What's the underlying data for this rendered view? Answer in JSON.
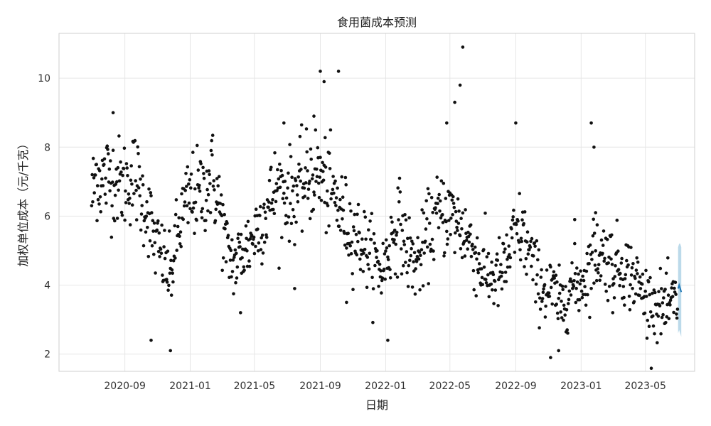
{
  "chart_data": {
    "type": "scatter",
    "title": "食用菌成本预测",
    "xlabel": "日期",
    "ylabel": "加权单位成本（元/千克）",
    "x_ticks": [
      "2020-09",
      "2021-01",
      "2021-05",
      "2021-09",
      "2022-01",
      "2022-05",
      "2022-09",
      "2023-01",
      "2023-05"
    ],
    "y_ticks": [
      2,
      4,
      6,
      8,
      10
    ],
    "xlim": [
      "2020-05-01",
      "2023-08-01"
    ],
    "ylim": [
      1.5,
      11.3
    ],
    "grid": true,
    "colors": {
      "points": "#111111",
      "forecast": "#1f77b4",
      "interval": "#a6cee3"
    },
    "observed_keypoints": [
      [
        "2020-07-01",
        6.5
      ],
      [
        "2020-07-10",
        7.3
      ],
      [
        "2020-07-20",
        7.0
      ],
      [
        "2020-08-01",
        7.2
      ],
      [
        "2020-08-15",
        7.1
      ],
      [
        "2020-08-25",
        6.9
      ],
      [
        "2020-09-05",
        7.0
      ],
      [
        "2020-09-20",
        7.2
      ],
      [
        "2020-10-01",
        6.6
      ],
      [
        "2020-10-15",
        6.1
      ],
      [
        "2020-10-25",
        5.3
      ],
      [
        "2020-11-10",
        4.8
      ],
      [
        "2020-11-25",
        4.2
      ],
      [
        "2020-12-05",
        5.2
      ],
      [
        "2020-12-20",
        6.2
      ],
      [
        "2021-01-05",
        6.6
      ],
      [
        "2021-01-25",
        6.7
      ],
      [
        "2021-02-10",
        7.2
      ],
      [
        "2021-02-25",
        6.3
      ],
      [
        "2021-03-10",
        5.0
      ],
      [
        "2021-03-25",
        4.6
      ],
      [
        "2021-04-10",
        5.0
      ],
      [
        "2021-04-25",
        5.3
      ],
      [
        "2021-05-10",
        5.8
      ],
      [
        "2021-05-25",
        6.2
      ],
      [
        "2021-06-10",
        6.8
      ],
      [
        "2021-06-25",
        6.7
      ],
      [
        "2021-07-10",
        6.6
      ],
      [
        "2021-07-25",
        6.8
      ],
      [
        "2021-08-10",
        7.1
      ],
      [
        "2021-08-25",
        7.3
      ],
      [
        "2021-09-10",
        6.9
      ],
      [
        "2021-09-25",
        6.6
      ],
      [
        "2021-10-10",
        6.1
      ],
      [
        "2021-10-25",
        5.7
      ],
      [
        "2021-11-10",
        5.4
      ],
      [
        "2021-11-25",
        5.1
      ],
      [
        "2021-12-10",
        4.7
      ],
      [
        "2021-12-25",
        4.4
      ],
      [
        "2022-01-10",
        5.2
      ],
      [
        "2022-01-25",
        5.9
      ],
      [
        "2022-02-10",
        5.0
      ],
      [
        "2022-02-25",
        4.6
      ],
      [
        "2022-03-10",
        4.9
      ],
      [
        "2022-03-25",
        5.7
      ],
      [
        "2022-04-10",
        6.0
      ],
      [
        "2022-04-25",
        6.1
      ],
      [
        "2022-05-10",
        5.9
      ],
      [
        "2022-05-25",
        5.6
      ],
      [
        "2022-06-10",
        5.2
      ],
      [
        "2022-06-25",
        4.6
      ],
      [
        "2022-07-10",
        4.3
      ],
      [
        "2022-07-25",
        4.2
      ],
      [
        "2022-08-10",
        4.4
      ],
      [
        "2022-08-25",
        5.2
      ],
      [
        "2022-09-10",
        5.6
      ],
      [
        "2022-09-25",
        5.0
      ],
      [
        "2022-10-10",
        4.2
      ],
      [
        "2022-10-25",
        3.9
      ],
      [
        "2022-11-10",
        3.8
      ],
      [
        "2022-11-25",
        3.3
      ],
      [
        "2022-12-10",
        4.0
      ],
      [
        "2022-12-25",
        4.0
      ],
      [
        "2023-01-10",
        4.3
      ],
      [
        "2023-01-25",
        4.9
      ],
      [
        "2023-02-10",
        4.9
      ],
      [
        "2023-02-25",
        4.7
      ],
      [
        "2023-03-10",
        4.6
      ],
      [
        "2023-03-25",
        4.5
      ],
      [
        "2023-04-10",
        4.2
      ],
      [
        "2023-04-25",
        3.8
      ],
      [
        "2023-05-10",
        3.5
      ],
      [
        "2023-05-25",
        3.4
      ],
      [
        "2023-06-10",
        3.3
      ],
      [
        "2023-06-25",
        3.5
      ],
      [
        "2023-06-30",
        3.6
      ]
    ],
    "notable_points": [
      [
        "2020-08-10",
        9.0
      ],
      [
        "2020-10-20",
        2.4
      ],
      [
        "2020-11-25",
        2.1
      ],
      [
        "2021-04-05",
        3.2
      ],
      [
        "2021-06-25",
        8.7
      ],
      [
        "2021-07-15",
        3.9
      ],
      [
        "2021-08-20",
        8.9
      ],
      [
        "2021-09-01",
        10.2
      ],
      [
        "2021-09-08",
        9.9
      ],
      [
        "2021-10-05",
        10.2
      ],
      [
        "2021-10-20",
        3.5
      ],
      [
        "2022-01-05",
        2.4
      ],
      [
        "2022-04-25",
        8.7
      ],
      [
        "2022-05-10",
        9.3
      ],
      [
        "2022-05-20",
        9.8
      ],
      [
        "2022-05-25",
        10.9
      ],
      [
        "2022-09-01",
        8.7
      ],
      [
        "2022-11-05",
        1.9
      ],
      [
        "2022-11-20",
        2.1
      ],
      [
        "2022-12-20",
        5.9
      ],
      [
        "2023-01-20",
        8.7
      ],
      [
        "2023-01-25",
        8.0
      ],
      [
        "2023-01-28",
        6.1
      ],
      [
        "2023-03-01",
        3.2
      ]
    ],
    "forecast": {
      "dates": [
        "2023-07-01",
        "2023-07-03",
        "2023-07-05",
        "2023-07-07"
      ],
      "yhat": [
        3.9,
        4.0,
        3.9,
        3.8
      ],
      "yhat_lower": [
        2.6,
        2.7,
        2.6,
        2.5
      ],
      "yhat_upper": [
        5.1,
        5.2,
        5.2,
        5.1
      ]
    }
  }
}
